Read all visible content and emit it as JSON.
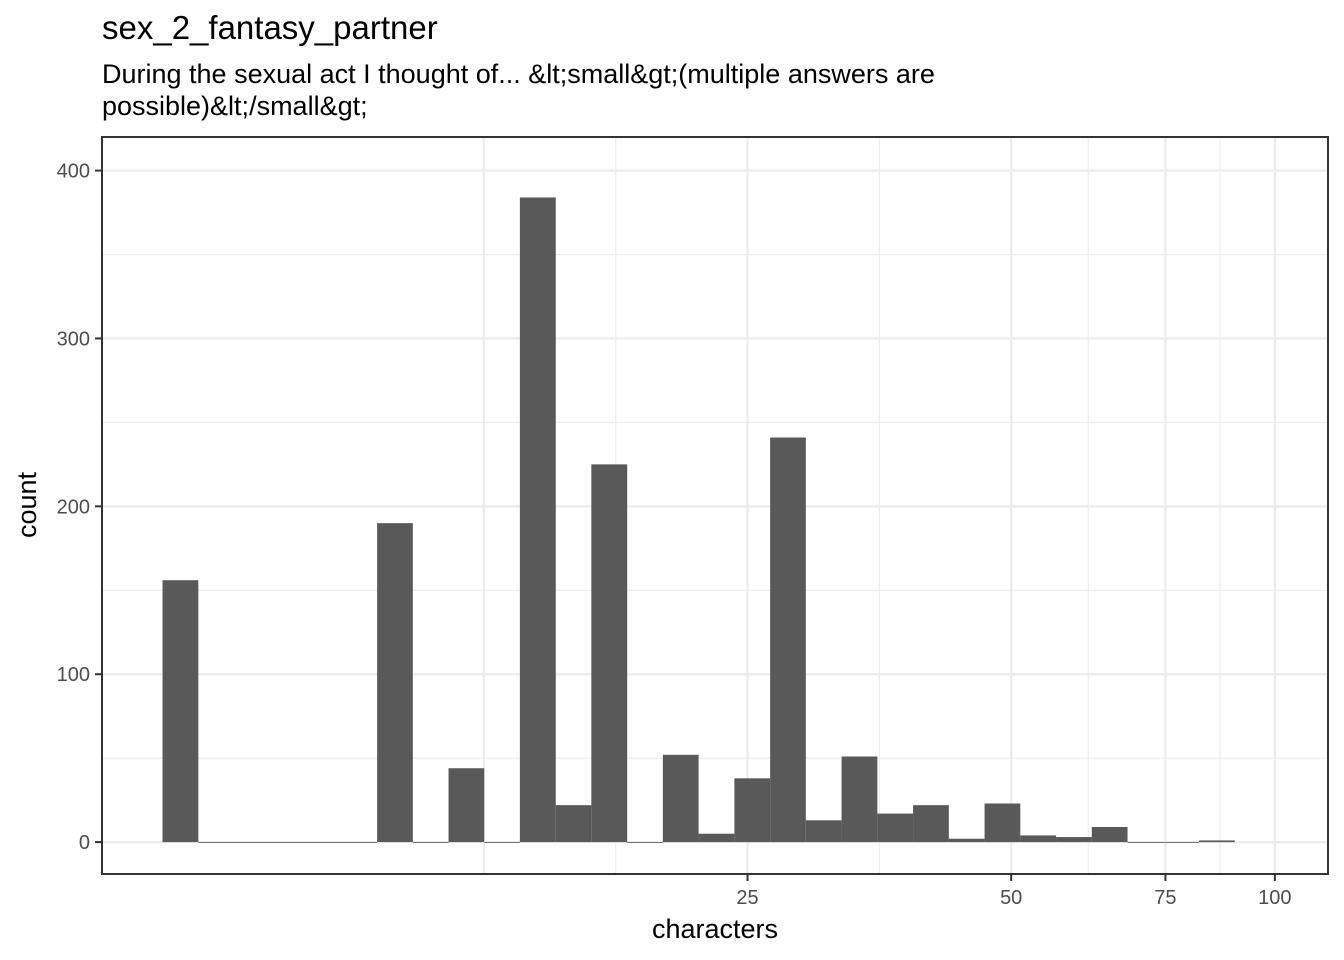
{
  "chart_data": {
    "type": "bar",
    "title": "sex_2_fantasy_partner",
    "subtitle": "During the sexual act I thought of... &lt;small&gt;(multiple answers are possible)&lt;/small&gt;",
    "xlabel": "characters",
    "ylabel": "count",
    "x_scale": "log10",
    "x_ticks": [
      25,
      50,
      75,
      100
    ],
    "x_tick_labels": [
      "25",
      "50",
      "75",
      "100"
    ],
    "y_ticks": [
      0,
      100,
      200,
      300,
      400
    ],
    "y_tick_labels": [
      "0",
      "100",
      "200",
      "300",
      "400"
    ],
    "ylim": [
      -19,
      420
    ],
    "xlim": [
      4.58,
      115
    ],
    "grid": true,
    "theme": "bw",
    "bar_color": "#595959",
    "bins": [
      {
        "x0": 5.37,
        "x1": 5.9,
        "count": 156
      },
      {
        "x0": 5.9,
        "x1": 6.48,
        "count": 0
      },
      {
        "x0": 6.48,
        "x1": 7.12,
        "count": 0
      },
      {
        "x0": 7.12,
        "x1": 7.82,
        "count": 0
      },
      {
        "x0": 7.82,
        "x1": 8.59,
        "count": 0
      },
      {
        "x0": 8.59,
        "x1": 9.44,
        "count": 0
      },
      {
        "x0": 9.44,
        "x1": 10.37,
        "count": 190
      },
      {
        "x0": 10.37,
        "x1": 11.39,
        "count": 0
      },
      {
        "x0": 11.39,
        "x1": 12.51,
        "count": 44
      },
      {
        "x0": 12.51,
        "x1": 13.74,
        "count": 0
      },
      {
        "x0": 13.74,
        "x1": 15.1,
        "count": 384
      },
      {
        "x0": 15.1,
        "x1": 16.58,
        "count": 22
      },
      {
        "x0": 16.58,
        "x1": 18.22,
        "count": 225
      },
      {
        "x0": 18.22,
        "x1": 20.01,
        "count": 0
      },
      {
        "x0": 20.01,
        "x1": 21.98,
        "count": 52
      },
      {
        "x0": 21.98,
        "x1": 24.15,
        "count": 5
      },
      {
        "x0": 24.15,
        "x1": 26.53,
        "count": 38
      },
      {
        "x0": 26.53,
        "x1": 29.14,
        "count": 241
      },
      {
        "x0": 29.14,
        "x1": 32.01,
        "count": 13
      },
      {
        "x0": 32.01,
        "x1": 35.17,
        "count": 51
      },
      {
        "x0": 35.17,
        "x1": 38.63,
        "count": 17
      },
      {
        "x0": 38.63,
        "x1": 42.44,
        "count": 22
      },
      {
        "x0": 42.44,
        "x1": 46.62,
        "count": 2
      },
      {
        "x0": 46.62,
        "x1": 51.21,
        "count": 23
      },
      {
        "x0": 51.21,
        "x1": 56.26,
        "count": 4
      },
      {
        "x0": 56.26,
        "x1": 61.8,
        "count": 3
      },
      {
        "x0": 61.8,
        "x1": 67.89,
        "count": 9
      },
      {
        "x0": 67.89,
        "x1": 74.58,
        "count": 0
      },
      {
        "x0": 74.58,
        "x1": 81.93,
        "count": 0
      },
      {
        "x0": 81.93,
        "x1": 90.0,
        "count": 1
      }
    ]
  }
}
